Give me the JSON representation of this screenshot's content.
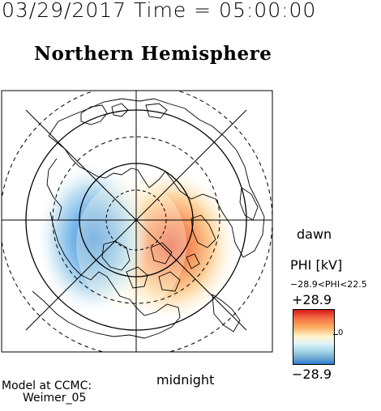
{
  "header": {
    "datetime": "03/29/2017 Time = 05:00:00",
    "hemisphere": "Northern Hemisphere"
  },
  "map": {
    "dawn_label": "dawn",
    "midnight_label": "midnight",
    "potential": {
      "positive_cell": "dusk/left-of-noon side, blue",
      "negative_cell": "dawn side, red"
    }
  },
  "colorbar": {
    "title": "PHI [kV]",
    "range_text": "−28.9<PHI<22.5",
    "max_label": "+28.9",
    "min_label": "−28.9",
    "zero_label": "0",
    "colors": [
      "#d7191c",
      "#fdae61",
      "#fff7d0",
      "#abd9e9",
      "#2c7bd6"
    ]
  },
  "footer": {
    "model_line1": "Model at CCMC:",
    "model_line2": "Weimer_05"
  }
}
